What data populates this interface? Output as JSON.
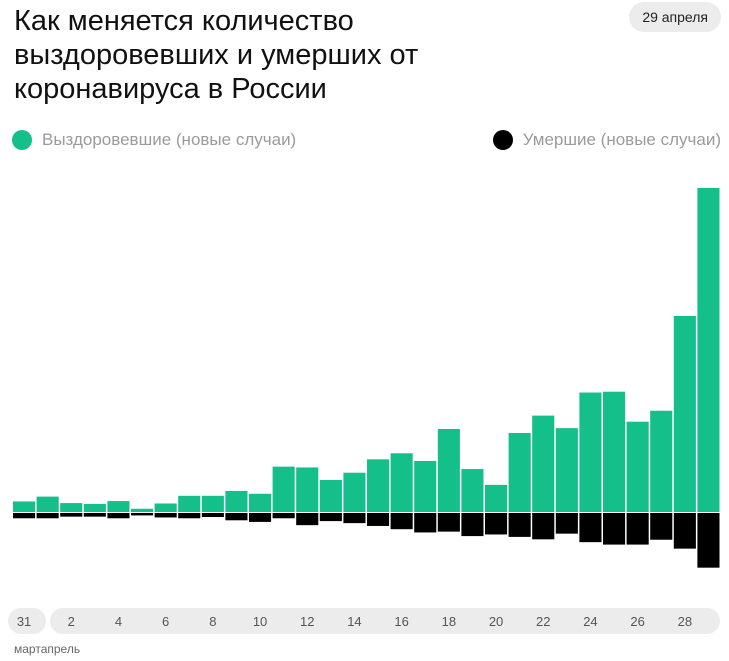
{
  "title": "Как меняется количество выздоровевших и умерших от коронавируса в России",
  "date_badge": "29 апреля",
  "legend": {
    "recovered": "Выздоровевшие (новые случаи)",
    "deaths": "Умершие (новые случаи)"
  },
  "colors": {
    "recovered": "#14bf89",
    "deaths": "#000000",
    "axis_bg": "#ececec"
  },
  "month_labels": {
    "march": "март",
    "april": "апрель"
  },
  "chart_data": {
    "type": "bar",
    "title": "Как меняется количество выздоровевших и умерших от коронавируса в России",
    "categories": [
      "31",
      "1",
      "2",
      "3",
      "4",
      "5",
      "6",
      "7",
      "8",
      "9",
      "10",
      "11",
      "12",
      "13",
      "14",
      "15",
      "16",
      "17",
      "18",
      "19",
      "20",
      "21",
      "22",
      "23",
      "24",
      "25",
      "26",
      "27",
      "28",
      "29"
    ],
    "tick_labels": [
      "31",
      "2",
      "4",
      "6",
      "8",
      "10",
      "12",
      "14",
      "16",
      "18",
      "20",
      "22",
      "24",
      "26",
      "28"
    ],
    "series": [
      {
        "name": "Выздоровевшие (новые случаи)",
        "direction": "up",
        "values": [
          26,
          38,
          22,
          20,
          27,
          8,
          21,
          40,
          40,
          52,
          45,
          112,
          110,
          79,
          97,
          130,
          145,
          126,
          205,
          106,
          67,
          195,
          238,
          207,
          295,
          297,
          223,
          250,
          484,
          800
        ]
      },
      {
        "name": "Умершие (новые случаи)",
        "direction": "down",
        "values": [
          13,
          13,
          9,
          9,
          13,
          6,
          11,
          13,
          10,
          18,
          22,
          13,
          30,
          20,
          25,
          32,
          40,
          48,
          46,
          57,
          53,
          59,
          65,
          51,
          72,
          78,
          78,
          66,
          88,
          135
        ]
      }
    ],
    "ylim": [
      -135,
      800
    ],
    "grid": false,
    "legend_position": "top"
  }
}
